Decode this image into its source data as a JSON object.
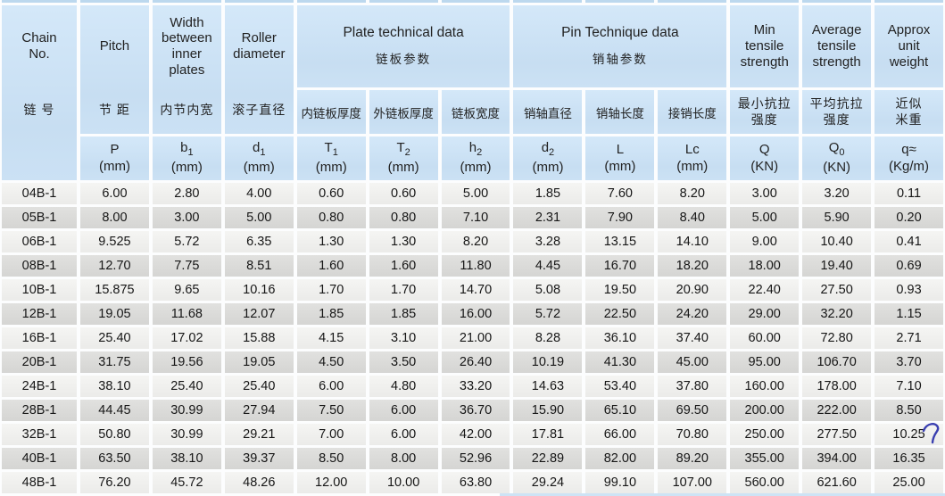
{
  "header": {
    "columns_left": [
      {
        "en": "Chain\nNo.",
        "cn": "链 号"
      },
      {
        "en": "Pitch",
        "cn": "节 距"
      },
      {
        "en": "Width\nbetween\ninner\nplates",
        "cn": "内节内宽"
      },
      {
        "en": "Roller\ndiameter",
        "cn": "滚子直径"
      }
    ],
    "groups": [
      {
        "en": "Plate technical data",
        "cn": "链板参数",
        "subs": [
          "内链板厚度",
          "外链板厚度",
          "链板宽度"
        ]
      },
      {
        "en": "Pin Technique data",
        "cn": "销轴参数",
        "subs": [
          "销轴直径",
          "销轴长度",
          "接销长度"
        ]
      }
    ],
    "columns_right": [
      {
        "en": "Min\ntensile\nstrength",
        "cn": "最小抗拉\n强度"
      },
      {
        "en": "Average\ntensile\nstrength",
        "cn": "平均抗拉\n强度"
      },
      {
        "en": "Approx\nunit\nweight",
        "cn": "近似\n米重"
      }
    ],
    "symbols": [
      {
        "base": "P",
        "sub": "",
        "unit": "(mm)"
      },
      {
        "base": "b",
        "sub": "1",
        "unit": "(mm)"
      },
      {
        "base": "d",
        "sub": "1",
        "unit": "(mm)"
      },
      {
        "base": "T",
        "sub": "1",
        "unit": "(mm)"
      },
      {
        "base": "T",
        "sub": "2",
        "unit": "(mm)"
      },
      {
        "base": "h",
        "sub": "2",
        "unit": "(mm)"
      },
      {
        "base": "d",
        "sub": "2",
        "unit": "(mm)"
      },
      {
        "base": "L",
        "sub": "",
        "unit": "(mm)"
      },
      {
        "base": "Lc",
        "sub": "",
        "unit": "(mm)"
      },
      {
        "base": "Q",
        "sub": "",
        "unit": "(KN)"
      },
      {
        "base": "Q",
        "sub": "0",
        "unit": "(KN)"
      },
      {
        "base": "q≈",
        "sub": "",
        "unit": "(Kg/m)"
      }
    ]
  },
  "annotation": {
    "type": "blue-pen-mark",
    "beside_value": "10.25",
    "row": "32B-1",
    "color": "#3a3fb0"
  },
  "colors": {
    "header_blue": "#c9e0f3",
    "row_light": "#f0f0ee",
    "row_dark": "#d9d9d7",
    "gap_white": "#fcfdfe"
  },
  "chart_data": {
    "type": "table",
    "columns": [
      "Chain No. 链号",
      "Pitch P (mm)",
      "Width between inner plates b1 (mm)",
      "Roller diameter d1 (mm)",
      "Inner plate thickness T1 (mm)",
      "Outer plate thickness T2 (mm)",
      "Plate width h2 (mm)",
      "Pin diameter d2 (mm)",
      "Pin length L (mm)",
      "Connecting pin length Lc (mm)",
      "Min tensile strength Q (KN)",
      "Average tensile strength Q0 (KN)",
      "Approx unit weight q (Kg/m)"
    ],
    "rows": [
      [
        "04B-1",
        "6.00",
        "2.80",
        "4.00",
        "0.60",
        "0.60",
        "5.00",
        "1.85",
        "7.60",
        "8.20",
        "3.00",
        "3.20",
        "0.11"
      ],
      [
        "05B-1",
        "8.00",
        "3.00",
        "5.00",
        "0.80",
        "0.80",
        "7.10",
        "2.31",
        "7.90",
        "8.40",
        "5.00",
        "5.90",
        "0.20"
      ],
      [
        "06B-1",
        "9.525",
        "5.72",
        "6.35",
        "1.30",
        "1.30",
        "8.20",
        "3.28",
        "13.15",
        "14.10",
        "9.00",
        "10.40",
        "0.41"
      ],
      [
        "08B-1",
        "12.70",
        "7.75",
        "8.51",
        "1.60",
        "1.60",
        "11.80",
        "4.45",
        "16.70",
        "18.20",
        "18.00",
        "19.40",
        "0.69"
      ],
      [
        "10B-1",
        "15.875",
        "9.65",
        "10.16",
        "1.70",
        "1.70",
        "14.70",
        "5.08",
        "19.50",
        "20.90",
        "22.40",
        "27.50",
        "0.93"
      ],
      [
        "12B-1",
        "19.05",
        "11.68",
        "12.07",
        "1.85",
        "1.85",
        "16.00",
        "5.72",
        "22.50",
        "24.20",
        "29.00",
        "32.20",
        "1.15"
      ],
      [
        "16B-1",
        "25.40",
        "17.02",
        "15.88",
        "4.15",
        "3.10",
        "21.00",
        "8.28",
        "36.10",
        "37.40",
        "60.00",
        "72.80",
        "2.71"
      ],
      [
        "20B-1",
        "31.75",
        "19.56",
        "19.05",
        "4.50",
        "3.50",
        "26.40",
        "10.19",
        "41.30",
        "45.00",
        "95.00",
        "106.70",
        "3.70"
      ],
      [
        "24B-1",
        "38.10",
        "25.40",
        "25.40",
        "6.00",
        "4.80",
        "33.20",
        "14.63",
        "53.40",
        "37.80",
        "160.00",
        "178.00",
        "7.10"
      ],
      [
        "28B-1",
        "44.45",
        "30.99",
        "27.94",
        "7.50",
        "6.00",
        "36.70",
        "15.90",
        "65.10",
        "69.50",
        "200.00",
        "222.00",
        "8.50"
      ],
      [
        "32B-1",
        "50.80",
        "30.99",
        "29.21",
        "7.00",
        "6.00",
        "42.00",
        "17.81",
        "66.00",
        "70.80",
        "250.00",
        "277.50",
        "10.25"
      ],
      [
        "40B-1",
        "63.50",
        "38.10",
        "39.37",
        "8.50",
        "8.00",
        "52.96",
        "22.89",
        "82.00",
        "89.20",
        "355.00",
        "394.00",
        "16.35"
      ],
      [
        "48B-1",
        "76.20",
        "45.72",
        "48.26",
        "12.00",
        "10.00",
        "63.80",
        "29.24",
        "99.10",
        "107.00",
        "560.00",
        "621.60",
        "25.00"
      ]
    ]
  }
}
